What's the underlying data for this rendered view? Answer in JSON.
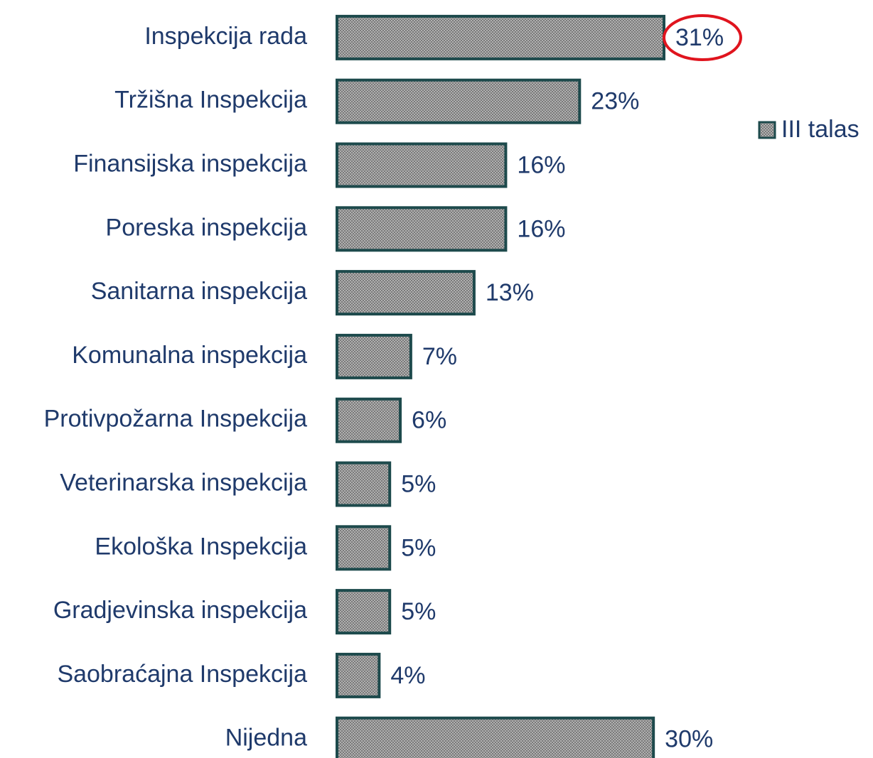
{
  "chart_data": {
    "type": "bar",
    "orientation": "horizontal",
    "categories": [
      "Inspekcija rada",
      "Tržišna Inspekcija",
      "Finansijska inspekcija",
      "Poreska inspekcija",
      "Sanitarna inspekcija",
      "Komunalna inspekcija",
      "Protivpožarna Inspekcija",
      "Veterinarska inspekcija",
      "Ekološka Inspekcija",
      "Gradjevinska inspekcija",
      "Saobraćajna Inspekcija",
      "Nijedna"
    ],
    "series": [
      {
        "name": "III talas",
        "color": "#999999",
        "values": [
          31,
          23,
          16,
          16,
          13,
          7,
          6,
          5,
          5,
          5,
          4,
          30
        ],
        "value_labels": [
          "31%",
          "23%",
          "16%",
          "16%",
          "13%",
          "7%",
          "6%",
          "5%",
          "5%",
          "5%",
          "4%",
          "30%"
        ]
      }
    ],
    "legend": "right"
  }
}
